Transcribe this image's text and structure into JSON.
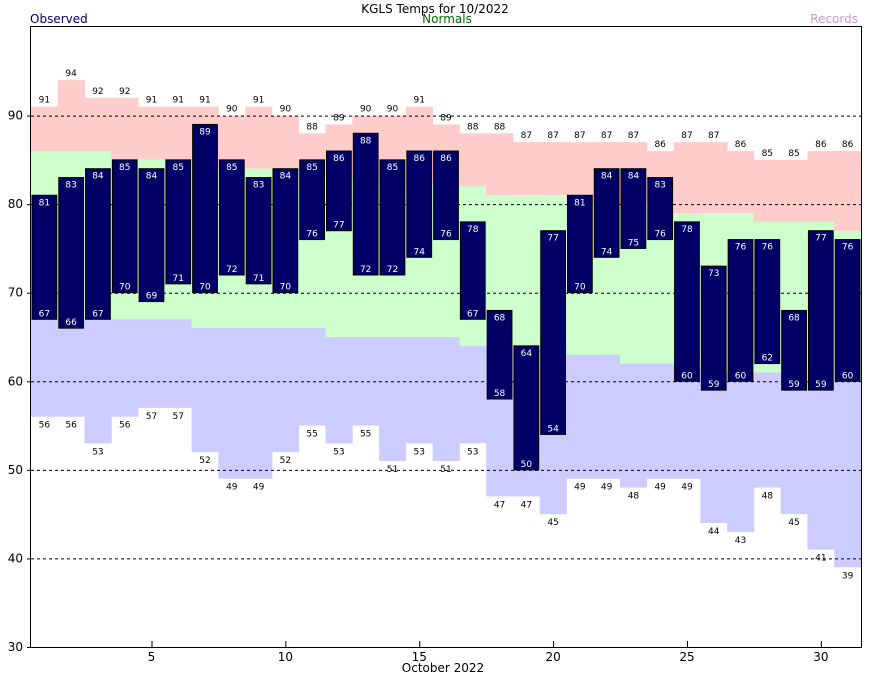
{
  "chart_data": {
    "type": "bar",
    "title": "KGLS Temps for 10/2022",
    "xlabel": "October 2022",
    "ylabel": "",
    "ylim": [
      30,
      100
    ],
    "yticks": [
      30,
      40,
      50,
      60,
      70,
      80,
      90
    ],
    "xticks": [
      5,
      10,
      15,
      20,
      25,
      30
    ],
    "xlim": [
      0.5,
      31.5
    ],
    "days": [
      1,
      2,
      3,
      4,
      5,
      6,
      7,
      8,
      9,
      10,
      11,
      12,
      13,
      14,
      15,
      16,
      17,
      18,
      19,
      20,
      21,
      22,
      23,
      24,
      25,
      26,
      27,
      28,
      29,
      30,
      31
    ],
    "legend": {
      "observed": "Observed",
      "normals": "Normals",
      "records": "Records",
      "placement": "top"
    },
    "colors": {
      "observed": "#000066",
      "normals": "#ccffcc",
      "record_high": "#ffcccc",
      "record_low": "#ccccff",
      "observed_label": "#000066",
      "normals_label": "#006600",
      "records_label": "#cc99cc",
      "grid": "#000000"
    },
    "grid": "dashed horizontal at 40, 50, 60, 70, 80, 90",
    "series": [
      {
        "name": "Observed",
        "high": [
          81,
          83,
          84,
          85,
          84,
          85,
          89,
          85,
          83,
          84,
          85,
          86,
          88,
          85,
          86,
          86,
          78,
          68,
          64,
          77,
          81,
          84,
          84,
          83,
          78,
          73,
          76,
          76,
          68,
          77,
          76
        ],
        "low": [
          67,
          66,
          67,
          70,
          69,
          71,
          70,
          72,
          71,
          70,
          76,
          77,
          72,
          72,
          74,
          76,
          67,
          58,
          50,
          54,
          70,
          74,
          75,
          76,
          60,
          59,
          60,
          62,
          59,
          59,
          60
        ]
      },
      {
        "name": "Normals",
        "high": [
          86,
          86,
          86,
          85,
          85,
          85,
          84,
          84,
          84,
          84,
          83,
          83,
          83,
          82,
          82,
          82,
          82,
          81,
          81,
          81,
          80,
          80,
          80,
          80,
          79,
          79,
          79,
          78,
          78,
          78,
          77
        ],
        "low": [
          67,
          67,
          67,
          67,
          67,
          67,
          66,
          66,
          66,
          66,
          66,
          65,
          65,
          65,
          65,
          65,
          64,
          64,
          64,
          64,
          63,
          63,
          62,
          62,
          62,
          61,
          61,
          61,
          61,
          60,
          60
        ]
      },
      {
        "name": "Records",
        "high": [
          91,
          94,
          92,
          92,
          91,
          91,
          91,
          90,
          91,
          90,
          88,
          89,
          90,
          90,
          91,
          89,
          88,
          88,
          87,
          87,
          87,
          87,
          87,
          86,
          87,
          87,
          86,
          85,
          85,
          86,
          86
        ],
        "low": [
          56,
          56,
          53,
          56,
          57,
          57,
          52,
          49,
          49,
          52,
          55,
          53,
          55,
          51,
          53,
          51,
          53,
          47,
          47,
          45,
          49,
          49,
          48,
          49,
          49,
          44,
          43,
          48,
          45,
          41,
          39
        ]
      }
    ]
  }
}
